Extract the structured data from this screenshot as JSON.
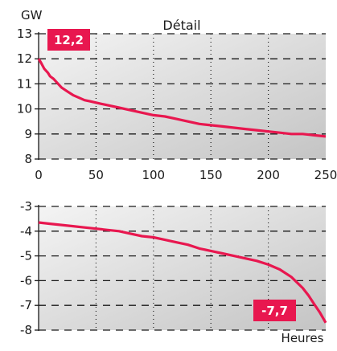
{
  "colors": {
    "series": "#e8174f",
    "badge_bg": "#e8174f",
    "plot_bg_light": "#f4f4f4",
    "plot_bg_dark": "#c4c4c4"
  },
  "chart_data": [
    {
      "type": "line",
      "title": "Détail",
      "ylabel": "GW",
      "xlabel": "",
      "xlim": [
        0,
        250
      ],
      "ylim": [
        8,
        13
      ],
      "xticks": [
        "0",
        "50",
        "100",
        "150",
        "200",
        "250"
      ],
      "xtick_values": [
        0,
        50,
        100,
        150,
        200,
        250
      ],
      "yticks": [
        "8",
        "9",
        "10",
        "11",
        "12",
        "13"
      ],
      "ytick_values": [
        8,
        9,
        10,
        11,
        12,
        13
      ],
      "grid": "horizontal dashed, vertical dotted",
      "annotation": "12,2",
      "series": [
        {
          "x": [
            0,
            2,
            5,
            8,
            10,
            13,
            17,
            20,
            25,
            30,
            35,
            40,
            45,
            50,
            55,
            60,
            70,
            80,
            90,
            100,
            110,
            120,
            130,
            140,
            150,
            160,
            170,
            180,
            190,
            200,
            210,
            220,
            230,
            240,
            250
          ],
          "values": [
            12.0,
            11.85,
            11.6,
            11.45,
            11.3,
            11.2,
            11.0,
            10.85,
            10.7,
            10.55,
            10.45,
            10.35,
            10.3,
            10.25,
            10.2,
            10.15,
            10.05,
            9.95,
            9.85,
            9.75,
            9.7,
            9.6,
            9.5,
            9.4,
            9.35,
            9.3,
            9.25,
            9.2,
            9.15,
            9.1,
            9.05,
            9.0,
            9.0,
            8.95,
            8.9
          ]
        }
      ]
    },
    {
      "type": "line",
      "title": "",
      "ylabel": "",
      "xlabel": "Heures",
      "xlim": [
        0,
        250
      ],
      "ylim": [
        -8,
        -3
      ],
      "yticks": [
        "-3",
        "-4",
        "-5",
        "-6",
        "-7",
        "-8"
      ],
      "ytick_values": [
        -3,
        -4,
        -5,
        -6,
        -7,
        -8
      ],
      "grid": "horizontal dashed, vertical dotted",
      "annotation": "-7,7",
      "series": [
        {
          "x": [
            0,
            10,
            20,
            30,
            40,
            50,
            60,
            70,
            80,
            90,
            100,
            110,
            120,
            130,
            140,
            150,
            160,
            170,
            180,
            190,
            200,
            210,
            220,
            230,
            235,
            240,
            245,
            250
          ],
          "values": [
            -3.65,
            -3.7,
            -3.75,
            -3.8,
            -3.85,
            -3.9,
            -3.95,
            -4.0,
            -4.1,
            -4.2,
            -4.25,
            -4.35,
            -4.45,
            -4.55,
            -4.7,
            -4.8,
            -4.9,
            -5.0,
            -5.1,
            -5.2,
            -5.35,
            -5.55,
            -5.85,
            -6.3,
            -6.6,
            -6.95,
            -7.3,
            -7.7
          ]
        }
      ]
    }
  ]
}
